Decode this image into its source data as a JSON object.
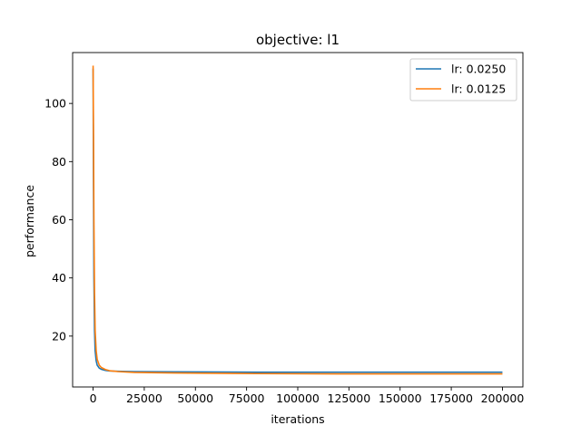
{
  "chart_data": {
    "type": "line",
    "title": "objective: l1",
    "xlabel": "iterations",
    "ylabel": "performance",
    "xlim": [
      -10000,
      210000
    ],
    "ylim": [
      2.5,
      117.5
    ],
    "xticks": [
      0,
      25000,
      50000,
      75000,
      100000,
      125000,
      150000,
      175000,
      200000
    ],
    "yticks": [
      20,
      40,
      60,
      80,
      100
    ],
    "legend_position": "top-right",
    "series": [
      {
        "name": "lr: 0.0250",
        "color": "#1f77b4",
        "x": [
          0,
          200,
          400,
          700,
          1000,
          1500,
          2000,
          3000,
          4000,
          6000,
          8000,
          12000,
          20000,
          40000,
          80000,
          120000,
          160000,
          200000
        ],
        "y": [
          112,
          70,
          40,
          22,
          15,
          11.5,
          10,
          9,
          8.6,
          8.2,
          8.0,
          7.9,
          7.8,
          7.7,
          7.6,
          7.6,
          7.6,
          7.6
        ]
      },
      {
        "name": "lr: 0.0125",
        "color": "#ff7f0e",
        "x": [
          0,
          200,
          400,
          700,
          1000,
          1500,
          2000,
          3000,
          4000,
          6000,
          8000,
          12000,
          20000,
          40000,
          80000,
          120000,
          160000,
          200000
        ],
        "y": [
          113,
          90,
          60,
          35,
          22,
          15,
          12,
          10,
          9.2,
          8.5,
          8.1,
          7.8,
          7.5,
          7.3,
          7.1,
          7.0,
          7.0,
          7.0
        ]
      }
    ]
  }
}
